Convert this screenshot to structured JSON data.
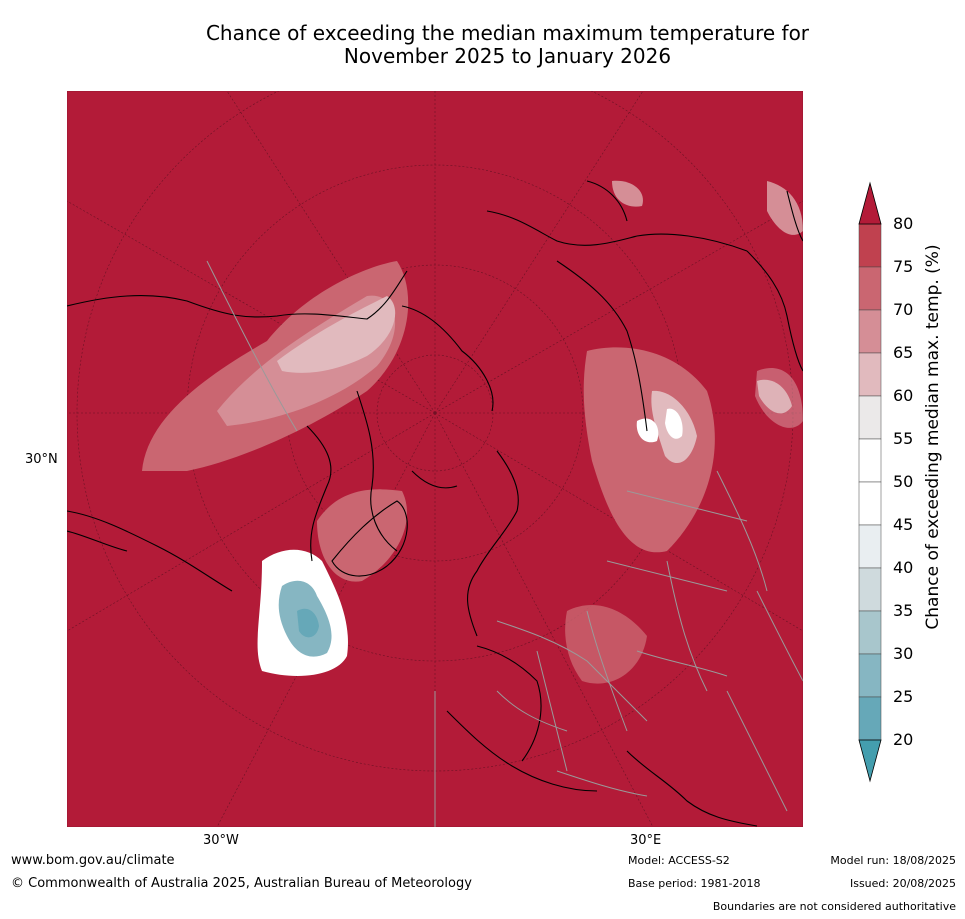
{
  "title_line1": "Chance of exceeding the median maximum temperature for",
  "title_line2": "November 2025 to January 2026",
  "map": {
    "lat_label": "30°N",
    "lon_label_left": "30°W",
    "lon_label_right": "30°E"
  },
  "colorbar": {
    "label": "Chance of exceeding median max. temp. (%)",
    "ticks": [
      "80",
      "75",
      "70",
      "65",
      "60",
      "55",
      "50",
      "45",
      "40",
      "35",
      "30",
      "25",
      "20"
    ],
    "colors": [
      "#b31b38",
      "#c0414f",
      "#ca6671",
      "#d58e96",
      "#e1babe",
      "#ebe9e9",
      "#ffffff",
      "#ffffff",
      "#e9eef1",
      "#cfdadd",
      "#a8c6cc",
      "#86b6c2",
      "#66a8b8",
      "#449eae"
    ],
    "over_color": "#b31b38",
    "under_color": "#449eae"
  },
  "footer": {
    "website": "www.bom.gov.au/climate",
    "copyright": "© Commonwealth of Australia 2025, Australian Bureau of Meteorology",
    "model": "Model: ACCESS-S2",
    "base_period": "Base period: 1981-2018",
    "model_run": "Model run: 18/08/2025",
    "issued": "Issued: 20/08/2025",
    "disclaimer": "Boundaries are not considered authoritative"
  }
}
